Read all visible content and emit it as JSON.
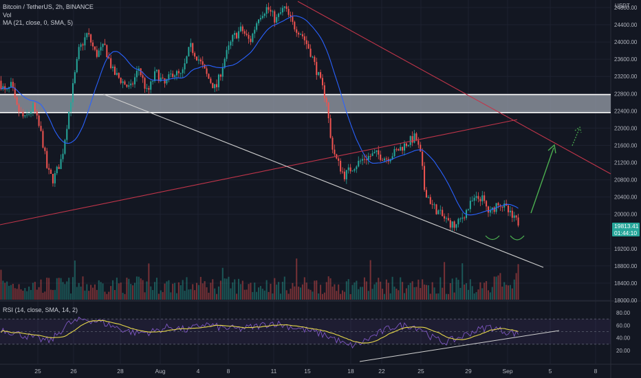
{
  "legend": {
    "line1": "Bitcoin / TetherUS, 2h, BINANCE",
    "line2": "Vol",
    "line3": "MA (21, close, 0, SMA, 5)",
    "rsi": "RSI (14, close, SMA, 14, 2)"
  },
  "price_tag": {
    "price": "19813.41",
    "countdown": "01:44:10"
  },
  "colors": {
    "background": "#131722",
    "up": "#26a69a",
    "down": "#ef5350",
    "ma": "#2962ff",
    "rsi": "#7e57c2",
    "rsi_ma": "#e8d94a",
    "trend_red": "#c2354a",
    "trend_white": "#d0d0d0",
    "arrow": "#4caf50"
  },
  "chart_data": [
    {
      "type": "candlestick",
      "title": "Bitcoin / TetherUS, 2h, BINANCE",
      "y_axis_unit": "USDT",
      "y_ticks": [
        24800,
        24400,
        24000,
        23600,
        23200,
        22800,
        22400,
        22000,
        21600,
        21200,
        20800,
        20400,
        20000,
        19200,
        18800,
        18400,
        18000
      ],
      "x_ticks": [
        "25",
        "26",
        "28",
        "Aug",
        "4",
        "8",
        "11",
        "15",
        "18",
        "22",
        "25",
        "29",
        "Sep",
        "5",
        "8"
      ],
      "price_path": [
        [
          0,
          23100
        ],
        [
          0.012,
          22800
        ],
        [
          0.022,
          23000
        ],
        [
          0.03,
          22500
        ],
        [
          0.045,
          22200
        ],
        [
          0.06,
          22500
        ],
        [
          0.075,
          21800
        ],
        [
          0.085,
          21000
        ],
        [
          0.095,
          20800
        ],
        [
          0.11,
          21300
        ],
        [
          0.125,
          22600
        ],
        [
          0.14,
          23800
        ],
        [
          0.155,
          24200
        ],
        [
          0.17,
          23700
        ],
        [
          0.185,
          23900
        ],
        [
          0.2,
          23300
        ],
        [
          0.215,
          23100
        ],
        [
          0.23,
          22900
        ],
        [
          0.245,
          23400
        ],
        [
          0.26,
          22800
        ],
        [
          0.275,
          23300
        ],
        [
          0.29,
          23000
        ],
        [
          0.305,
          23300
        ],
        [
          0.32,
          23200
        ],
        [
          0.335,
          23900
        ],
        [
          0.35,
          23600
        ],
        [
          0.365,
          23200
        ],
        [
          0.38,
          22900
        ],
        [
          0.395,
          23600
        ],
        [
          0.41,
          24100
        ],
        [
          0.425,
          24300
        ],
        [
          0.44,
          24000
        ],
        [
          0.455,
          24600
        ],
        [
          0.47,
          24800
        ],
        [
          0.485,
          24500
        ],
        [
          0.5,
          24800
        ],
        [
          0.515,
          24400
        ],
        [
          0.53,
          24200
        ],
        [
          0.545,
          23800
        ],
        [
          0.56,
          23200
        ],
        [
          0.575,
          22600
        ],
        [
          0.58,
          21800
        ],
        [
          0.59,
          21300
        ],
        [
          0.605,
          20900
        ],
        [
          0.62,
          21100
        ],
        [
          0.64,
          21300
        ],
        [
          0.66,
          21400
        ],
        [
          0.68,
          21300
        ],
        [
          0.7,
          21500
        ],
        [
          0.72,
          21700
        ],
        [
          0.73,
          21800
        ],
        [
          0.74,
          21300
        ],
        [
          0.745,
          20600
        ],
        [
          0.76,
          20200
        ],
        [
          0.78,
          19900
        ],
        [
          0.8,
          19700
        ],
        [
          0.815,
          20000
        ],
        [
          0.83,
          20300
        ],
        [
          0.845,
          20400
        ],
        [
          0.86,
          20000
        ],
        [
          0.875,
          20300
        ],
        [
          0.89,
          20100
        ],
        [
          0.9,
          19900
        ],
        [
          0.91,
          19813
        ]
      ],
      "levels": [
        22780,
        22360
      ],
      "last_price": 19813.41
    },
    {
      "type": "line",
      "title": "RSI (14, close, SMA, 14, 2)",
      "y_ticks": [
        80,
        60,
        40,
        20
      ],
      "bands": [
        70,
        30
      ],
      "rsi_path": [
        [
          0,
          55
        ],
        [
          0.04,
          45
        ],
        [
          0.07,
          38
        ],
        [
          0.09,
          35
        ],
        [
          0.12,
          62
        ],
        [
          0.15,
          70
        ],
        [
          0.18,
          65
        ],
        [
          0.21,
          55
        ],
        [
          0.24,
          48
        ],
        [
          0.27,
          50
        ],
        [
          0.3,
          58
        ],
        [
          0.33,
          52
        ],
        [
          0.36,
          62
        ],
        [
          0.39,
          56
        ],
        [
          0.42,
          54
        ],
        [
          0.45,
          58
        ],
        [
          0.48,
          64
        ],
        [
          0.51,
          58
        ],
        [
          0.54,
          52
        ],
        [
          0.57,
          45
        ],
        [
          0.59,
          38
        ],
        [
          0.61,
          27
        ],
        [
          0.63,
          30
        ],
        [
          0.66,
          45
        ],
        [
          0.69,
          58
        ],
        [
          0.72,
          60
        ],
        [
          0.74,
          55
        ],
        [
          0.76,
          40
        ],
        [
          0.78,
          33
        ],
        [
          0.8,
          38
        ],
        [
          0.83,
          50
        ],
        [
          0.86,
          58
        ],
        [
          0.88,
          52
        ],
        [
          0.9,
          48
        ],
        [
          0.91,
          46
        ]
      ]
    }
  ]
}
